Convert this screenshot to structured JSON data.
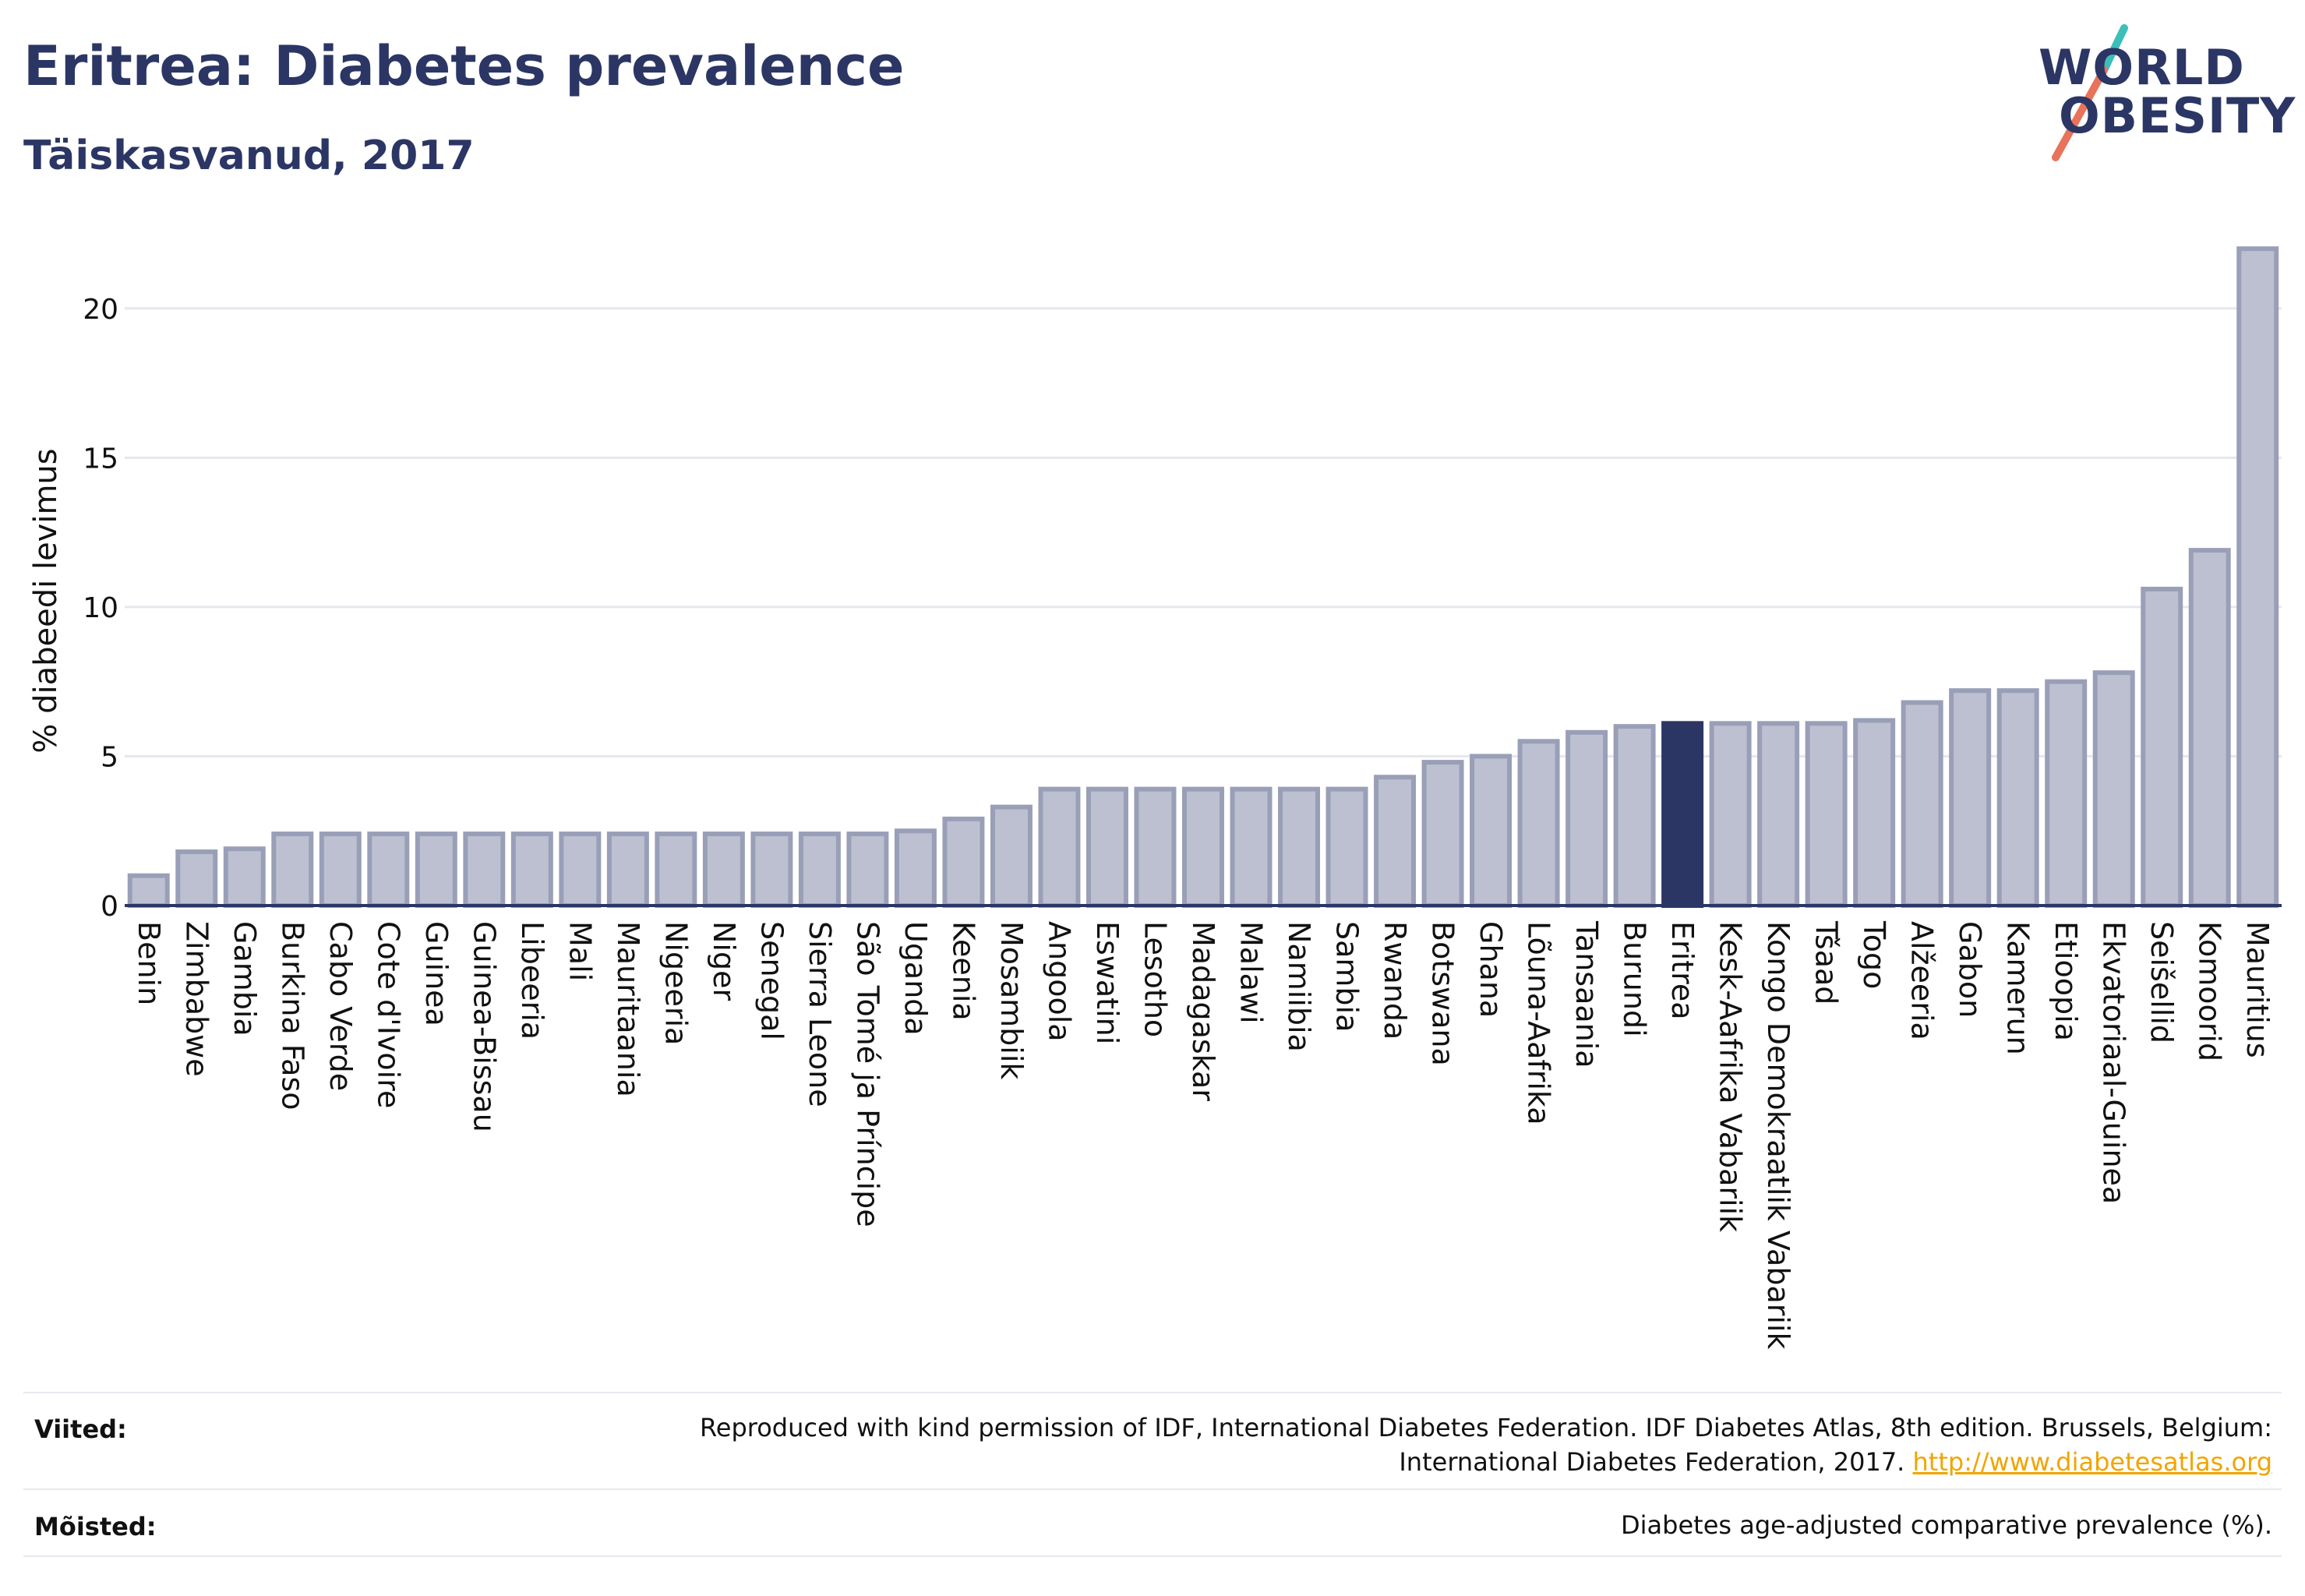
{
  "header": {
    "title": "Eritrea: Diabetes prevalence",
    "subtitle": "Täiskasvanud, 2017"
  },
  "logo": {
    "line1": "WORLD",
    "line2": "OBESITY",
    "colors": {
      "text": "#2b3665",
      "slash_top": "#3bbfb8",
      "slash_bottom": "#e8735a"
    }
  },
  "colors": {
    "bar": "#bcc0d0",
    "bar_border": "#9a9fb8",
    "highlight": "#2b3665",
    "grid": "#e6e7ee",
    "axis": "#2b3665"
  },
  "chart_data": {
    "type": "bar",
    "ylabel": "% diabeedi levimus",
    "xlabel": "",
    "ylim": [
      0,
      22.5
    ],
    "yticks": [
      0,
      5,
      10,
      15,
      20
    ],
    "grid": true,
    "highlight": "Eritrea",
    "categories": [
      "Benin",
      "Zimbabwe",
      "Gambia",
      "Burkina Faso",
      "Cabo Verde",
      "Cote d'Ivoire",
      "Guinea",
      "Guinea-Bissau",
      "Libeeria",
      "Mali",
      "Mauritaania",
      "Nigeeria",
      "Niger",
      "Senegal",
      "Sierra Leone",
      "São Tomé ja Príncipe",
      "Uganda",
      "Keenia",
      "Mosambiik",
      "Angoola",
      "Eswatini",
      "Lesotho",
      "Madagaskar",
      "Malawi",
      "Namiibia",
      "Sambia",
      "Rwanda",
      "Botswana",
      "Ghana",
      "Lõuna-Aafrika",
      "Tansaania",
      "Burundi",
      "Eritrea",
      "Kesk-Aafrika Vabariik",
      "Kongo Demokraatlik Vabariik",
      "Tšaad",
      "Togo",
      "Alžeeria",
      "Gabon",
      "Kamerun",
      "Etioopia",
      "Ekvatoriaal-Guinea",
      "Seišellid",
      "Komoorid",
      "Mauritius"
    ],
    "values": [
      1.0,
      1.8,
      1.9,
      2.4,
      2.4,
      2.4,
      2.4,
      2.4,
      2.4,
      2.4,
      2.4,
      2.4,
      2.4,
      2.4,
      2.4,
      2.4,
      2.5,
      2.9,
      3.3,
      3.9,
      3.9,
      3.9,
      3.9,
      3.9,
      3.9,
      3.9,
      4.3,
      4.8,
      5.0,
      5.5,
      5.8,
      6.0,
      6.1,
      6.1,
      6.1,
      6.1,
      6.2,
      6.8,
      7.2,
      7.2,
      7.5,
      7.8,
      10.6,
      11.9,
      22.0
    ]
  },
  "footer": {
    "refs_label": "Viited:",
    "refs_line1": "Reproduced with kind permission of IDF, International Diabetes Federation. IDF Diabetes Atlas, 8th edition. Brussels, Belgium:",
    "refs_line2": "International Diabetes Federation, 2017.",
    "refs_link": "http://www.diabetesatlas.org",
    "defs_label": "Mõisted:",
    "defs_text": "Diabetes age-adjusted comparative prevalence (%)."
  }
}
